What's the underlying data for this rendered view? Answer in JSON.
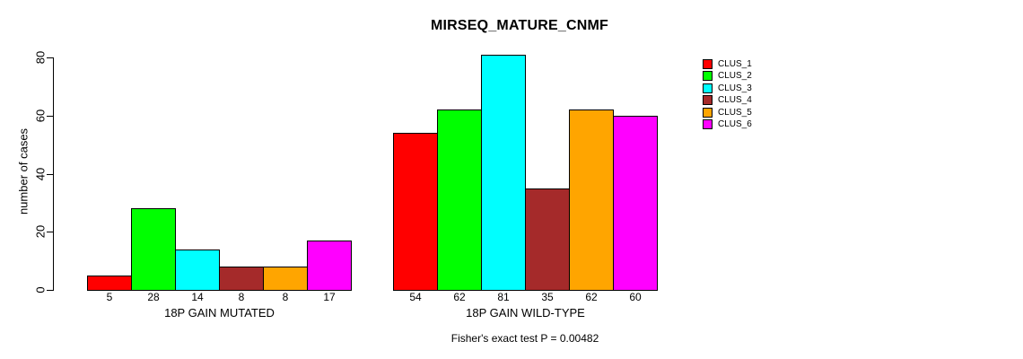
{
  "chart_data": {
    "type": "bar",
    "title": "MIRSEQ_MATURE_CNMF",
    "ylabel": "number of cases",
    "xlabel": "",
    "footnote": "Fisher's exact test P = 0.00482",
    "groups": [
      {
        "label": "18P GAIN MUTATED",
        "values": [
          5,
          28,
          14,
          8,
          8,
          17
        ]
      },
      {
        "label": "18P GAIN WILD-TYPE",
        "values": [
          54,
          62,
          81,
          35,
          62,
          60
        ]
      }
    ],
    "series": [
      {
        "name": "CLUS_1",
        "color": "#FF0000",
        "values": [
          5,
          54
        ]
      },
      {
        "name": "CLUS_2",
        "color": "#00FF00",
        "values": [
          28,
          62
        ]
      },
      {
        "name": "CLUS_3",
        "color": "#00FFFF",
        "values": [
          14,
          81
        ]
      },
      {
        "name": "CLUS_4",
        "color": "#A52A2A",
        "values": [
          8,
          35
        ]
      },
      {
        "name": "CLUS_5",
        "color": "#FFA500",
        "values": [
          8,
          62
        ]
      },
      {
        "name": "CLUS_6",
        "color": "#FF00FF",
        "values": [
          17,
          60
        ]
      }
    ],
    "legend": [
      "CLUS_1",
      "CLUS_2",
      "CLUS_3",
      "CLUS_4",
      "CLUS_5",
      "CLUS_6"
    ],
    "yticks": [
      0,
      20,
      40,
      60,
      80
    ],
    "ylim": [
      0,
      80
    ],
    "grid": false,
    "legend_position": "right",
    "bar_border_color": "#000000",
    "axis_color": "#000000",
    "background_color": "#FFFFFF"
  }
}
